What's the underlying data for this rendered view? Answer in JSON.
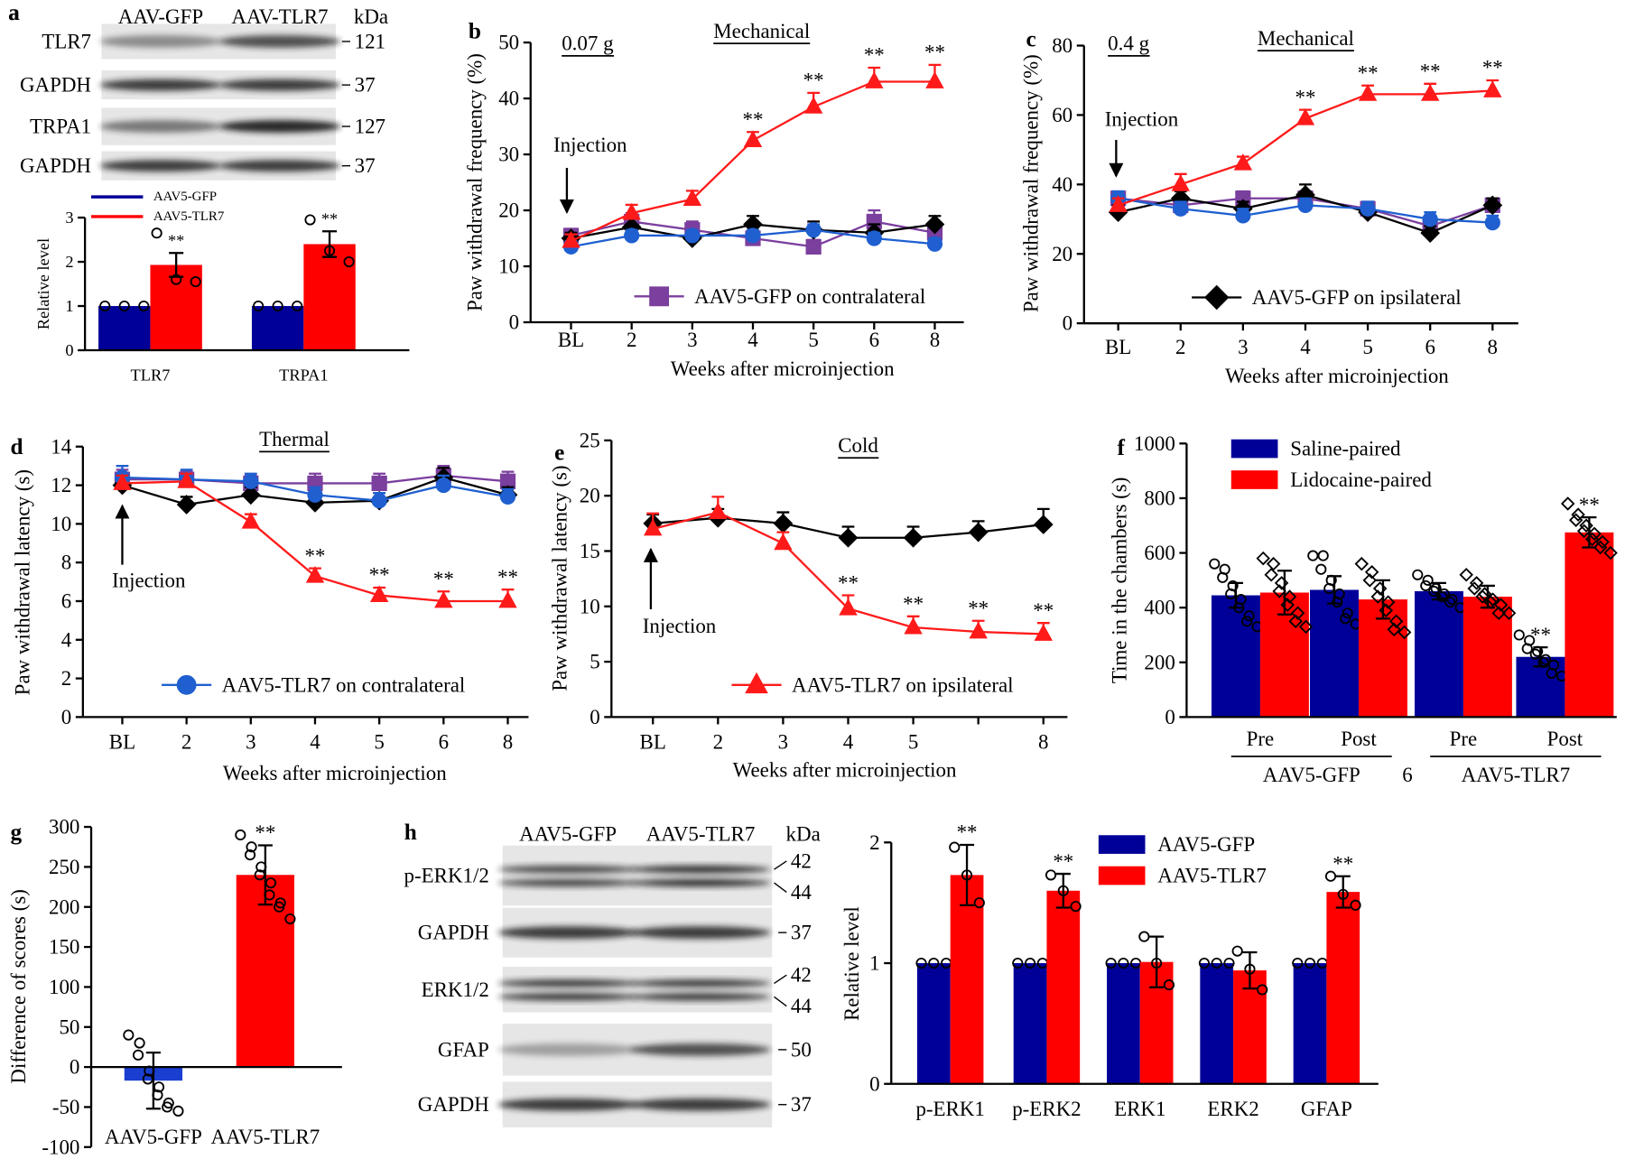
{
  "chart_data": [
    {
      "type": "bar",
      "label": "a",
      "ylabel": "Relative level",
      "categories": [
        "TLR7",
        "TRPA1"
      ],
      "series": [
        {
          "name": "AAV5-GFP",
          "color": "#000099",
          "values": [
            1,
            1
          ],
          "points": [
            [
              1,
              1,
              1
            ],
            [
              1,
              1,
              1
            ]
          ]
        },
        {
          "name": "AAV5-TLR7",
          "color": "#ff0000",
          "values": [
            1.93,
            2.4
          ],
          "errors": [
            0.27,
            0.29
          ],
          "points": [
            [
              2.65,
              1.6,
              1.55
            ],
            [
              2.95,
              2.25,
              2.0
            ]
          ]
        }
      ],
      "ylim": [
        0,
        3
      ],
      "yticks": [
        0,
        1,
        2,
        3
      ],
      "annotations": [
        {
          "text": "**",
          "series": 1,
          "index": 0
        },
        {
          "text": "**",
          "series": 1,
          "index": 1
        }
      ]
    },
    {
      "type": "line",
      "label": "b",
      "title": "Mechanical",
      "subtitle": "0.07 g",
      "note": "Injection",
      "xlabel": "Weeks after microinjection",
      "ylabel": "Paw withdrawal frequency (%)",
      "categories": [
        "BL",
        "2",
        "3",
        "4",
        "5",
        "6",
        "8"
      ],
      "ylim": [
        0,
        50
      ],
      "yticks": [
        0,
        10,
        20,
        30,
        40,
        50
      ],
      "series": [
        {
          "name": "AAV5-GFP on contralateral",
          "color": "#7b3f9e",
          "marker": "square",
          "values": [
            15.5,
            18,
            16.5,
            15,
            13.5,
            18,
            16
          ],
          "errors": [
            1.2,
            1.5,
            1.5,
            1.2,
            1.2,
            2,
            1.5
          ]
        },
        {
          "color": "#000000",
          "marker": "diamond",
          "values": [
            15,
            17,
            15,
            17.5,
            16.5,
            16,
            17.5
          ],
          "errors": [
            1,
            1.5,
            1,
            1.5,
            1.5,
            1.5,
            1.5
          ]
        },
        {
          "color": "#1f5fd0",
          "marker": "circle",
          "values": [
            13.5,
            15.5,
            15.5,
            15.5,
            16.5,
            15,
            14
          ],
          "errors": [
            1,
            1,
            1,
            1,
            1,
            1,
            1
          ]
        },
        {
          "color": "#ff1a1a",
          "marker": "triangle",
          "values": [
            14.5,
            19.5,
            22,
            32.5,
            38.5,
            43,
            43
          ],
          "errors": [
            1.2,
            1.5,
            1.5,
            1.5,
            2.5,
            2.5,
            3
          ]
        }
      ],
      "annotations": [
        {
          "text": "**",
          "series": 3,
          "index": 3
        },
        {
          "text": "**",
          "series": 3,
          "index": 4
        },
        {
          "text": "**",
          "series": 3,
          "index": 5
        },
        {
          "text": "**",
          "series": 3,
          "index": 6
        }
      ]
    },
    {
      "type": "line",
      "label": "c",
      "title": "Mechanical",
      "subtitle": "0.4 g",
      "note": "Injection",
      "xlabel": "Weeks after microinjection",
      "ylabel": "Paw withdrawal frequency (%)",
      "categories": [
        "BL",
        "2",
        "3",
        "4",
        "5",
        "6",
        "8"
      ],
      "ylim": [
        0,
        80
      ],
      "yticks": [
        0,
        20,
        40,
        60,
        80
      ],
      "series": [
        {
          "color": "#7b3f9e",
          "marker": "square",
          "values": [
            36,
            34,
            36,
            36,
            33,
            28,
            34
          ],
          "errors": [
            2,
            2,
            2,
            2,
            2,
            2,
            2
          ]
        },
        {
          "name": "AAV5-GFP on ipsilateral",
          "color": "#000000",
          "marker": "diamond",
          "values": [
            32,
            36,
            33,
            37,
            32,
            26,
            34
          ],
          "errors": [
            2,
            2,
            2,
            3,
            2,
            2,
            2
          ]
        },
        {
          "color": "#1f5fd0",
          "marker": "circle",
          "values": [
            36,
            33,
            31,
            34,
            33,
            30,
            29
          ],
          "errors": [
            2,
            2,
            2,
            2,
            2,
            2,
            2
          ]
        },
        {
          "color": "#ff1a1a",
          "marker": "triangle",
          "values": [
            34,
            40,
            46,
            59,
            66,
            66,
            67
          ],
          "errors": [
            2,
            3,
            2,
            2.5,
            2.5,
            3,
            3
          ]
        }
      ],
      "annotations": [
        {
          "text": "**",
          "series": 3,
          "index": 3
        },
        {
          "text": "**",
          "series": 3,
          "index": 4
        },
        {
          "text": "**",
          "series": 3,
          "index": 5
        },
        {
          "text": "**",
          "series": 3,
          "index": 6
        }
      ]
    },
    {
      "type": "line",
      "label": "d",
      "title": "Thermal",
      "note": "Injection",
      "xlabel": "Weeks after microinjection",
      "ylabel": "Paw withdrawal latency (s)",
      "categories": [
        "BL",
        "2",
        "3",
        "4",
        "5",
        "6",
        "8"
      ],
      "ylim": [
        0,
        14
      ],
      "yticks": [
        0,
        2,
        4,
        6,
        8,
        10,
        12,
        14
      ],
      "series": [
        {
          "color": "#7b3f9e",
          "marker": "square",
          "values": [
            12.3,
            12.3,
            12.1,
            12.1,
            12.1,
            12.5,
            12.2
          ],
          "errors": [
            0.5,
            0.4,
            0.4,
            0.5,
            0.5,
            0.5,
            0.5
          ]
        },
        {
          "color": "#000000",
          "marker": "diamond",
          "values": [
            12,
            11,
            11.5,
            11.1,
            11.2,
            12.4,
            11.5
          ],
          "errors": [
            0.4,
            0.4,
            0.4,
            0.4,
            0.4,
            0.5,
            0.4
          ]
        },
        {
          "name": "AAV5-TLR7 on contralateral",
          "color": "#1f5fd0",
          "marker": "circle",
          "values": [
            12.4,
            12.3,
            12.2,
            11.5,
            11.2,
            12,
            11.4
          ],
          "errors": [
            0.6,
            0.5,
            0.4,
            0.4,
            0.4,
            0.5,
            0.4
          ]
        },
        {
          "color": "#ff1a1a",
          "marker": "triangle",
          "values": [
            12.1,
            12.2,
            10.1,
            7.3,
            6.3,
            6,
            6
          ],
          "errors": [
            0.4,
            0.4,
            0.4,
            0.4,
            0.4,
            0.5,
            0.6
          ]
        }
      ],
      "annotations": [
        {
          "text": "**",
          "series": 3,
          "index": 3
        },
        {
          "text": "**",
          "series": 3,
          "index": 4
        },
        {
          "text": "**",
          "series": 3,
          "index": 5
        },
        {
          "text": "**",
          "series": 3,
          "index": 6
        }
      ]
    },
    {
      "type": "line",
      "label": "e",
      "title": "Cold",
      "note": "Injection",
      "xlabel": "Weeks after microinjection",
      "ylabel": "Paw withdrawal latency (s)",
      "categories": [
        "BL",
        "2",
        "3",
        "4",
        "5",
        null,
        "8"
      ],
      "ylim": [
        0,
        25
      ],
      "yticks": [
        0,
        5,
        10,
        15,
        20,
        25
      ],
      "series": [
        {
          "color": "#000000",
          "marker": "diamond",
          "values": [
            17.5,
            18,
            17.5,
            16.2,
            16.2,
            16.7,
            17.4
          ],
          "errors": [
            0.8,
            0.8,
            1,
            1,
            1,
            1,
            1.4
          ]
        },
        {
          "name": "AAV5-TLR7 on ipsilateral",
          "color": "#ff1a1a",
          "marker": "triangle",
          "values": [
            17,
            18.5,
            15.7,
            9.8,
            8.1,
            7.7,
            7.5
          ],
          "errors": [
            1.4,
            1.4,
            1,
            1.2,
            1,
            1,
            1
          ]
        }
      ],
      "annotations": [
        {
          "text": "**",
          "series": 1,
          "index": 3
        },
        {
          "text": "**",
          "series": 1,
          "index": 4
        },
        {
          "text": "**",
          "series": 1,
          "index": 5
        },
        {
          "text": "**",
          "series": 1,
          "index": 6
        }
      ]
    },
    {
      "type": "bar",
      "label": "f",
      "ylabel": "Time in the chambers (s)",
      "categories": [
        "Pre",
        "Post",
        "Pre",
        "Post"
      ],
      "groups": [
        "AAV5-GFP",
        "AAV5-TLR7"
      ],
      "note": "6",
      "series": [
        {
          "name": "Saline-paired",
          "color": "#000099",
          "values": [
            445,
            465,
            460,
            220
          ],
          "errors": [
            45,
            50,
            30,
            35
          ],
          "points": [
            [
              560,
              540,
              510,
              480,
              450,
              430,
              400,
              370,
              350,
              330
            ],
            [
              590,
              590,
              540,
              500,
              470,
              450,
              420,
              380,
              360,
              340
            ],
            [
              520,
              500,
              480,
              470,
              460,
              450,
              440,
              430,
              420,
              400
            ],
            [
              300,
              280,
              250,
              240,
              230,
              210,
              200,
              190,
              160,
              150
            ]
          ]
        },
        {
          "name": "Lidocaine-paired",
          "color": "#ff0000",
          "point_marker": "diamond",
          "values": [
            455,
            430,
            440,
            675
          ],
          "errors": [
            80,
            70,
            40,
            55
          ],
          "points": [
            [
              580,
              560,
              520,
              490,
              460,
              440,
              410,
              380,
              350,
              330
            ],
            [
              560,
              530,
              500,
              470,
              440,
              420,
              390,
              350,
              320,
              310
            ],
            [
              520,
              490,
              470,
              450,
              440,
              430,
              420,
              410,
              380,
              380
            ],
            [
              780,
              740,
              720,
              700,
              680,
              670,
              650,
              640,
              620,
              600
            ]
          ]
        }
      ],
      "ylim": [
        0,
        1000
      ],
      "yticks": [
        0,
        200,
        400,
        600,
        800,
        1000
      ],
      "annotations": [
        {
          "text": "**",
          "series": 0,
          "index": 3
        },
        {
          "text": "**",
          "series": 1,
          "index": 3
        }
      ]
    },
    {
      "type": "bar",
      "label": "g",
      "ylabel": "Difference of  scores (s)",
      "categories": [
        "AAV5-GFP",
        "AAV5-TLR7"
      ],
      "series": [
        {
          "colors": [
            "#1a3fd0",
            "#ff0000"
          ],
          "values": [
            -17,
            240
          ],
          "errors": [
            35,
            37
          ],
          "points": [
            [
              40,
              30,
              15,
              -5,
              -15,
              -25,
              -35,
              -45,
              -50,
              -55
            ],
            [
              290,
              275,
              265,
              250,
              240,
              230,
              215,
              205,
              200,
              185
            ]
          ]
        }
      ],
      "ylim": [
        -100,
        300
      ],
      "yticks": [
        -100,
        -50,
        0,
        50,
        100,
        150,
        200,
        250,
        300
      ],
      "annotations": [
        {
          "text": "**",
          "series": 0,
          "index": 1
        }
      ]
    },
    {
      "type": "bar",
      "ylabel": "Relative level",
      "categories": [
        "p-ERK1",
        "p-ERK2",
        "ERK1",
        "ERK2",
        "GFAP"
      ],
      "series": [
        {
          "name": "AAV5-GFP",
          "color": "#000099",
          "values": [
            1,
            1,
            1,
            1,
            1
          ],
          "points": [
            [
              1,
              1,
              1
            ],
            [
              1,
              1,
              1
            ],
            [
              1,
              1,
              1
            ],
            [
              1,
              1,
              1
            ],
            [
              1,
              1,
              1
            ]
          ]
        },
        {
          "name": "AAV5-TLR7",
          "color": "#ff0000",
          "values": [
            1.73,
            1.6,
            1.01,
            0.94,
            1.59
          ],
          "errors": [
            0.25,
            0.14,
            0.21,
            0.15,
            0.13
          ],
          "points": [
            [
              1.96,
              1.73,
              1.5
            ],
            [
              1.73,
              1.6,
              1.47
            ],
            [
              1.22,
              1.0,
              0.82
            ],
            [
              1.1,
              0.95,
              0.78
            ],
            [
              1.72,
              1.57,
              1.48
            ]
          ]
        }
      ],
      "ylim": [
        0,
        2
      ],
      "yticks": [
        0,
        1,
        2
      ],
      "annotations": [
        {
          "text": "**",
          "series": 1,
          "index": 0
        },
        {
          "text": "**",
          "series": 1,
          "index": 1
        },
        {
          "text": "**",
          "series": 1,
          "index": 4
        }
      ]
    }
  ],
  "blots": [
    {
      "label": "a",
      "headers": [
        "AAV-GFP",
        "AAV-TLR7"
      ],
      "unit": "kDa",
      "rows": [
        {
          "name": "TLR7",
          "kda": [
            121
          ]
        },
        {
          "name": "GAPDH",
          "kda": [
            37
          ]
        },
        {
          "name": "TRPA1",
          "kda": [
            127
          ]
        },
        {
          "name": "GAPDH",
          "kda": [
            37
          ]
        }
      ]
    },
    {
      "label": "h",
      "headers": [
        "AAV5-GFP",
        "AAV5-TLR7"
      ],
      "unit": "kDa",
      "rows": [
        {
          "name": "p-ERK1/2",
          "kda": [
            42,
            44
          ]
        },
        {
          "name": "GAPDH",
          "kda": [
            37
          ]
        },
        {
          "name": "ERK1/2",
          "kda": [
            42,
            44
          ]
        },
        {
          "name": "GFAP",
          "kda": [
            50
          ]
        },
        {
          "name": "GAPDH",
          "kda": [
            37
          ]
        }
      ]
    }
  ]
}
